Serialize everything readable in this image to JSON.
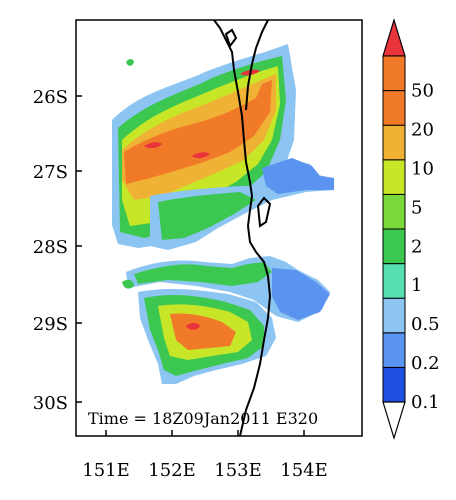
{
  "map": {
    "annotation": "Time = 18Z09Jan2011 E320",
    "lat_labels": [
      "26S",
      "27S",
      "28S",
      "29S",
      "30S"
    ],
    "lon_labels": [
      "151E",
      "152E",
      "153E",
      "154E"
    ],
    "lat_range": [
      -30.5,
      -25.2
    ],
    "lon_range": [
      150.6,
      154.6
    ]
  },
  "colorbar": {
    "levels": [
      "0.1",
      "0.2",
      "0.5",
      "1",
      "2",
      "5",
      "10",
      "20",
      "50"
    ],
    "colors": [
      "#1f4fe0",
      "#5b93f0",
      "#8cc4f2",
      "#56dfb2",
      "#3cc850",
      "#7ad83a",
      "#c8e628",
      "#f0b234",
      "#f07a28",
      "#e8343a"
    ],
    "extend": "both"
  }
}
